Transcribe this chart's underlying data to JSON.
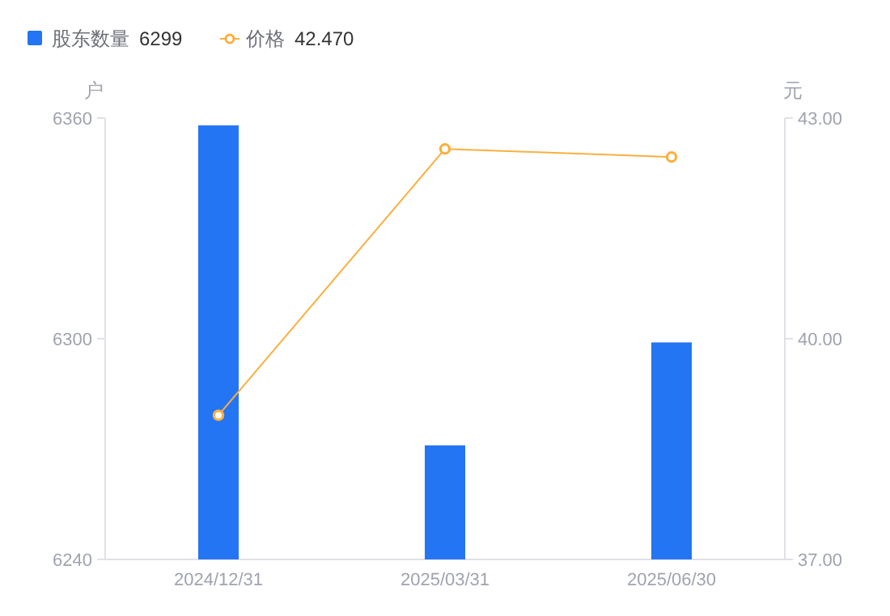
{
  "chart_data": {
    "type": "bar",
    "categories": [
      "2024/12/31",
      "2025/03/31",
      "2025/06/30"
    ],
    "ylabel": "户",
    "y2label": "元",
    "ylim": [
      6240,
      6360
    ],
    "yticks": [
      6240,
      6300,
      6360
    ],
    "y2lim": [
      37,
      43
    ],
    "y2ticks": [
      {
        "value": 37,
        "label": "37.00"
      },
      {
        "value": 40,
        "label": "40.00"
      },
      {
        "value": 43,
        "label": "43.00"
      }
    ],
    "series": [
      {
        "name": "股东数量",
        "color": "#2475f4",
        "values": [
          6358,
          6271,
          6299
        ]
      },
      {
        "name": "价格",
        "type": "line",
        "axis": "y2",
        "color": "#f9b040",
        "values": [
          38.96,
          42.58,
          42.47
        ]
      }
    ],
    "annotations": [
      "6299",
      "42.470"
    ],
    "marker": "circle",
    "line_style": "solid",
    "grid": false,
    "legend": "top left"
  }
}
